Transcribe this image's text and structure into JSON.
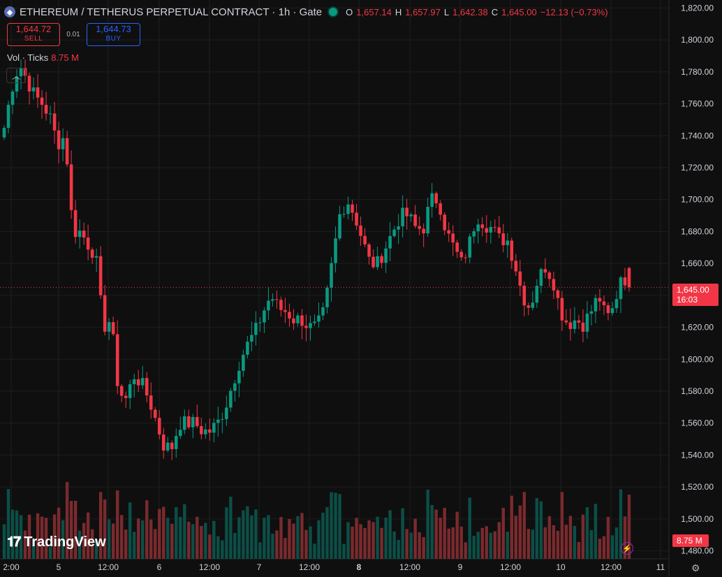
{
  "header": {
    "title": "ETHEREUM / TETHERUS PERPETUAL CONTRACT · 1h · Gate",
    "ohlc": [
      {
        "k": "O",
        "v": "1,657.14"
      },
      {
        "k": "H",
        "v": "1,657.97"
      },
      {
        "k": "L",
        "v": "1,642.38"
      },
      {
        "k": "C",
        "v": "1,645.00"
      },
      {
        "k": "",
        "v": "−12.13 (−0.73%)"
      }
    ]
  },
  "trade": {
    "sell_price": "1,644.72",
    "sell_label": "SELL",
    "spread": "0.01",
    "buy_price": "1,644.73",
    "buy_label": "BUY"
  },
  "volume": {
    "label": "Vol · Ticks",
    "value": "8.75 M"
  },
  "price_label": {
    "price": "1,645.00",
    "countdown": "16:03"
  },
  "volume_label": "8.75 M",
  "branding": "TradingView",
  "colors": {
    "up": "#089981",
    "down": "#f23645",
    "up_vol": "#0b4f47",
    "down_vol": "#7a2a2e",
    "bg": "#0f0f0f"
  },
  "chart_data": {
    "type": "candlestick",
    "ylim": [
      1475,
      1825
    ],
    "y_ticks": [
      "1,820.00",
      "1,800.00",
      "1,780.00",
      "1,760.00",
      "1,740.00",
      "1,720.00",
      "1,700.00",
      "1,680.00",
      "1,660.00",
      "1,640.00",
      "1,620.00",
      "1,600.00",
      "1,580.00",
      "1,560.00",
      "1,540.00",
      "1,520.00",
      "1,500.00",
      "1,480.00"
    ],
    "x_ticks": [
      "2:00",
      "5",
      "12:00",
      "6",
      "12:00",
      "7",
      "12:00",
      "8",
      "12:00",
      "9",
      "12:00",
      "10",
      "12:00",
      "11"
    ],
    "current_price": 1645,
    "close_path": [
      1745,
      1770,
      1785,
      1775,
      1765,
      1760,
      1752,
      1735,
      1740,
      1680,
      1680,
      1672,
      1665,
      1620,
      1625,
      1580,
      1575,
      1590,
      1585,
      1575,
      1560,
      1545,
      1545,
      1560,
      1560,
      1560,
      1555,
      1555,
      1560,
      1570,
      1585,
      1600,
      1610,
      1618,
      1630,
      1640,
      1632,
      1630,
      1625,
      1625,
      1620,
      1620,
      1630,
      1660,
      1690,
      1700,
      1690,
      1675,
      1660,
      1660,
      1670,
      1680,
      1690,
      1690,
      1682,
      1682,
      1700,
      1700,
      1680,
      1670,
      1660,
      1672,
      1690,
      1685,
      1682,
      1675,
      1675,
      1660,
      1640,
      1632,
      1650,
      1658,
      1650,
      1630,
      1622,
      1625,
      1622,
      1630,
      1640,
      1625,
      1632,
      1655,
      1645
    ],
    "candle_count": 150
  }
}
